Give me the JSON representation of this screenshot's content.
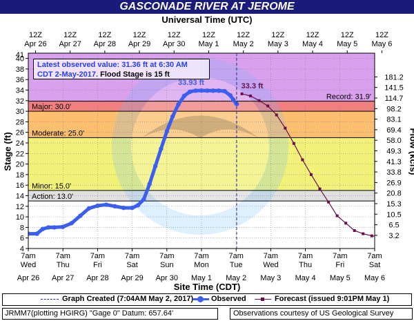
{
  "title": "GASCONADE RIVER AT JEROME",
  "top_axis_title": "Universal Time (UTC)",
  "bottom_axis_title": "Site Time (CDT)",
  "left_axis_title": "Stage (ft)",
  "right_axis_title": "Flow (kcfs)",
  "callout": {
    "line1": "Latest observed value: 31.36 ft at 6:30 AM",
    "line2_blue": "CDT 2-May-2017.",
    "line2_black": " Flood Stage is 15 ft"
  },
  "legend": {
    "graph_created": "Graph Created (7:04AM May 2, 2017)",
    "observed": "Observed",
    "forecast": "Forecast (issued 9:01PM May 1)"
  },
  "footer": {
    "left": "JRMM7(plotting HGIRG) \"Gage 0\" Datum:  657.64'",
    "right": "Observations courtesy of US Geological Survey"
  },
  "colors": {
    "record": "#d9a0ee",
    "major": "#f08080",
    "moderate": "#fbbf6f",
    "minor": "#f2f27a",
    "observed": "#3a5ff0",
    "forecast": "#6b0d4e",
    "title_bar": "#1a1a7a"
  },
  "chart_data": {
    "type": "line",
    "ylim": [
      4,
      41
    ],
    "y_ticks": [
      4,
      6,
      8,
      10,
      12,
      14,
      16,
      18,
      20,
      22,
      24,
      26,
      28,
      30,
      32,
      34,
      36,
      38,
      40
    ],
    "y_tick_labels": [
      "4",
      "6",
      "8",
      "10",
      "12",
      "14",
      "16",
      "18",
      "20",
      "22",
      "24",
      "26",
      "28",
      "30",
      "32",
      "34",
      "36",
      "38",
      "40"
    ],
    "x_range_hours": [
      0,
      240
    ],
    "bottom_ticks": [
      {
        "line1": "7am",
        "line2": "Wed",
        "line3": "Apr 26"
      },
      {
        "line1": "7am",
        "line2": "Thu",
        "line3": "Apr 27"
      },
      {
        "line1": "7am",
        "line2": "Fri",
        "line3": "Apr 28"
      },
      {
        "line1": "7am",
        "line2": "Sat",
        "line3": "Apr 29"
      },
      {
        "line1": "7am",
        "line2": "Sun",
        "line3": "Apr 30"
      },
      {
        "line1": "7am",
        "line2": "Mon",
        "line3": "May 1"
      },
      {
        "line1": "7am",
        "line2": "Tue",
        "line3": "May 2"
      },
      {
        "line1": "7am",
        "line2": "Wed",
        "line3": "May 3"
      },
      {
        "line1": "7am",
        "line2": "Thu",
        "line3": "May 4"
      },
      {
        "line1": "7am",
        "line2": "Fri",
        "line3": "May 5"
      },
      {
        "line1": "7am",
        "line2": "Sat",
        "line3": "May 6"
      }
    ],
    "top_ticks": [
      {
        "line1": "12Z",
        "line2": "Apr 26"
      },
      {
        "line1": "12Z",
        "line2": "Apr 27"
      },
      {
        "line1": "12Z",
        "line2": "Apr 28"
      },
      {
        "line1": "12Z",
        "line2": "Apr 29"
      },
      {
        "line1": "12Z",
        "line2": "Apr 30"
      },
      {
        "line1": "12Z",
        "line2": "May 1"
      },
      {
        "line1": "12Z",
        "line2": "May 2"
      },
      {
        "line1": "12Z",
        "line2": "May 3"
      },
      {
        "line1": "12Z",
        "line2": "May 4"
      },
      {
        "line1": "12Z",
        "line2": "May 5"
      },
      {
        "line1": "12Z",
        "line2": "May 6"
      }
    ],
    "flow_ticks": [
      {
        "stage": 6.5,
        "label": "3.2"
      },
      {
        "stage": 8.5,
        "label": "6.5"
      },
      {
        "stage": 10.5,
        "label": "10.5"
      },
      {
        "stage": 12.5,
        "label": "15.3"
      },
      {
        "stage": 14.5,
        "label": "20.8"
      },
      {
        "stage": 16.5,
        "label": "26.9"
      },
      {
        "stage": 18.5,
        "label": "33.8"
      },
      {
        "stage": 20.5,
        "label": "41.3"
      },
      {
        "stage": 22.5,
        "label": "49.3"
      },
      {
        "stage": 24.5,
        "label": "58.0"
      },
      {
        "stage": 26.5,
        "label": "69.4"
      },
      {
        "stage": 28.5,
        "label": "83.1"
      },
      {
        "stage": 30.5,
        "label": "98.2"
      },
      {
        "stage": 32.5,
        "label": "114.7"
      },
      {
        "stage": 34.5,
        "label": "141.5"
      },
      {
        "stage": 36.5,
        "label": "181.2"
      }
    ],
    "flood_categories": [
      {
        "name": "Action",
        "label": "Action: 13.0'",
        "stage": 13.0,
        "color": "#e0e0e0"
      },
      {
        "name": "Minor",
        "label": "Minor: 15.0'",
        "stage": 15.0,
        "color": "#f2f27a"
      },
      {
        "name": "Moderate",
        "label": "Moderate: 25.0'",
        "stage": 25.0,
        "color": "#fbbf6f"
      },
      {
        "name": "Major",
        "label": "Major: 30.0'",
        "stage": 30.0,
        "color": "#f08080"
      },
      {
        "name": "Record",
        "label": "Record: 31.9'",
        "stage": 31.9,
        "color": "#d9a0ee"
      }
    ],
    "series": [
      {
        "name": "Observed",
        "color": "#3a5ff0",
        "x_hours": [
          0,
          6,
          10,
          14,
          18,
          24,
          30,
          36,
          42,
          48,
          54,
          60,
          66,
          72,
          76,
          80,
          84,
          88,
          92,
          96,
          100,
          104,
          108,
          112,
          116,
          120,
          124,
          128,
          132,
          136,
          140,
          142,
          144,
          144.5
        ],
        "y": [
          6.8,
          6.8,
          7.7,
          8.0,
          8.0,
          8.1,
          8.8,
          10.2,
          11.6,
          12.1,
          12.3,
          12.0,
          11.7,
          11.7,
          12.2,
          13.3,
          16.2,
          19.6,
          22.9,
          26.2,
          29.0,
          31.3,
          32.9,
          33.7,
          33.9,
          33.93,
          33.9,
          33.9,
          33.9,
          33.8,
          33.0,
          32.2,
          31.5,
          31.36
        ]
      },
      {
        "name": "Forecast",
        "color": "#6b0d4e",
        "x_hours": [
          148,
          154,
          160,
          166,
          172,
          178,
          184,
          190,
          196,
          202,
          208,
          214,
          220,
          226,
          232,
          238,
          244
        ],
        "y": [
          33.3,
          32.9,
          32.0,
          31.0,
          29.3,
          26.8,
          23.9,
          20.8,
          18.0,
          15.3,
          12.8,
          10.2,
          8.8,
          7.4,
          6.8,
          6.4,
          6.2
        ]
      }
    ],
    "annotations": [
      {
        "text": "33.93 ft",
        "x_hours": 120,
        "y": 33.93
      },
      {
        "text": "33.3 ft",
        "x_hours": 148,
        "y": 33.3
      }
    ]
  }
}
